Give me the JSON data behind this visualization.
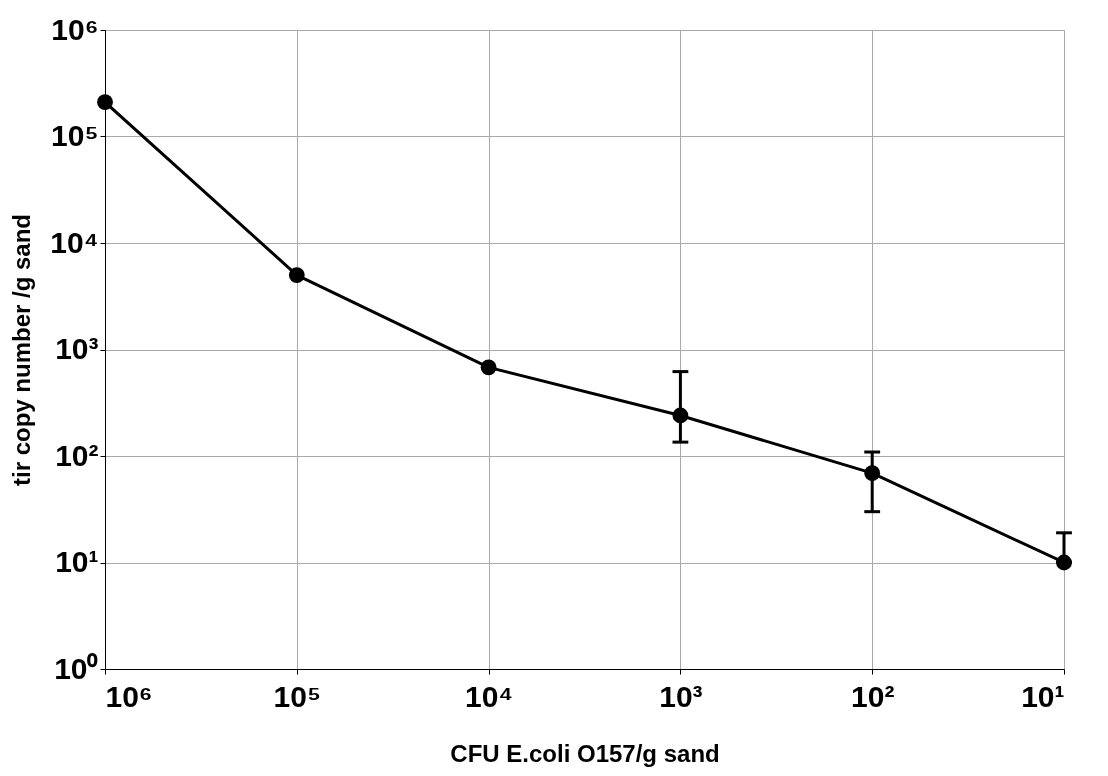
{
  "chart_data": {
    "type": "line",
    "xlabel": "CFU E.coli O157/g sand",
    "ylabel": "tir copy number /g sand",
    "x": [
      1000000,
      100000,
      10000,
      1000,
      100,
      10
    ],
    "series": [
      {
        "color": "#000000",
        "values": [
          210000,
          5000,
          680,
          240,
          69,
          10
        ],
        "errors": [
          null,
          null,
          null,
          [
            135,
            620
          ],
          [
            30,
            109
          ],
          [
            10,
            19
          ]
        ]
      }
    ],
    "log": "xy",
    "xlim": [
      1000000,
      10
    ],
    "ylim": [
      1,
      1000000
    ],
    "xticks": [
      {
        "value": 1000000,
        "label": "10⁶"
      },
      {
        "value": 100000,
        "label": "10⁵"
      },
      {
        "value": 10000,
        "label": "10⁴"
      },
      {
        "value": 1000,
        "label": "10³"
      },
      {
        "value": 100,
        "label": "10²"
      },
      {
        "value": 10,
        "label": "10¹"
      }
    ],
    "yticks": [
      {
        "value": 1,
        "label": "10⁰"
      },
      {
        "value": 10,
        "label": "10¹"
      },
      {
        "value": 100,
        "label": "10²"
      },
      {
        "value": 1000,
        "label": "10³"
      },
      {
        "value": 10000,
        "label": "10⁴"
      },
      {
        "value": 100000,
        "label": "10⁵"
      },
      {
        "value": 1000000,
        "label": "10⁶"
      }
    ],
    "grid": true,
    "marker": "circle",
    "line_style": "solid"
  }
}
